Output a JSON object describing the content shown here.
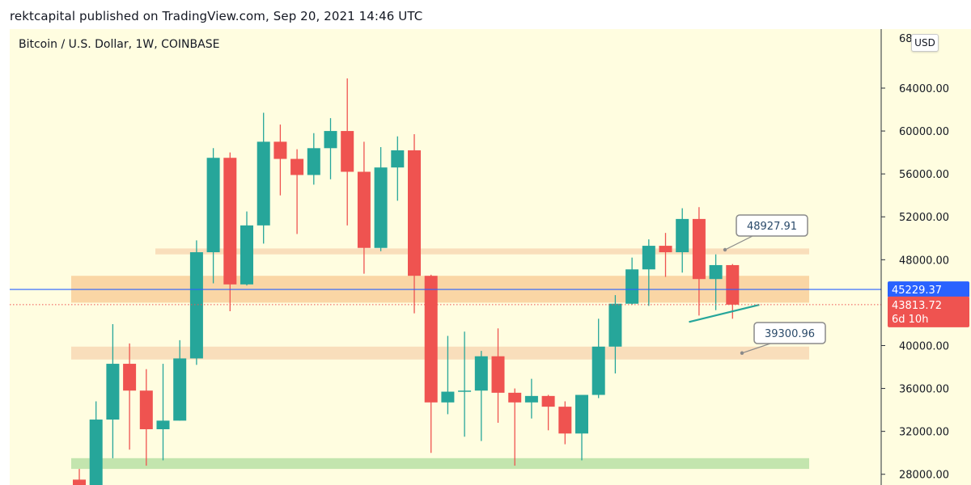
{
  "header": {
    "published_text": "rektcapital published on TradingView.com, Sep 20, 2021 14:46 UTC"
  },
  "chart_data": {
    "type": "candlestick",
    "symbol": "Bitcoin / U.S. Dollar, 1W, COINBASE",
    "currency_button": "USD",
    "y_axis": {
      "ylim": [
        27000,
        69500
      ],
      "ticks": [
        {
          "value": 64000,
          "label": "64000.00"
        },
        {
          "value": 60000,
          "label": "60000.00"
        },
        {
          "value": 56000,
          "label": "56000.00"
        },
        {
          "value": 52000,
          "label": "52000.00"
        },
        {
          "value": 48000,
          "label": "48000.00"
        },
        {
          "value": 44000,
          "label": "44000.00"
        },
        {
          "value": 40000,
          "label": "40000.00"
        },
        {
          "value": 36000,
          "label": "36000.00"
        },
        {
          "value": 32000,
          "label": "32000.00"
        },
        {
          "value": 28000,
          "label": "28000.00"
        }
      ],
      "top_partial_label": "68"
    },
    "colors": {
      "background": "#fffde0",
      "up": "#26a69a",
      "down": "#ef5350",
      "blue_line": "#2962ff",
      "zone_orange": "#f9cf9a",
      "zone_light": "#f8d8b4",
      "zone_green": "#b9e0a5",
      "trendline": "#26a69a"
    },
    "candles": [
      {
        "o": 27500,
        "h": 28500,
        "l": 26000,
        "c": 27000
      },
      {
        "o": 27000,
        "h": 34800,
        "l": 26500,
        "c": 33100
      },
      {
        "o": 33100,
        "h": 42000,
        "l": 29500,
        "c": 38300
      },
      {
        "o": 38300,
        "h": 40200,
        "l": 30300,
        "c": 35800
      },
      {
        "o": 35800,
        "h": 37800,
        "l": 28800,
        "c": 32200
      },
      {
        "o": 32200,
        "h": 38300,
        "l": 29300,
        "c": 33000
      },
      {
        "o": 33000,
        "h": 40500,
        "l": 33000,
        "c": 38800
      },
      {
        "o": 38800,
        "h": 49800,
        "l": 38200,
        "c": 48700
      },
      {
        "o": 48700,
        "h": 58400,
        "l": 45800,
        "c": 57500
      },
      {
        "o": 57500,
        "h": 58000,
        "l": 43200,
        "c": 45700
      },
      {
        "o": 45700,
        "h": 52500,
        "l": 45600,
        "c": 51200
      },
      {
        "o": 51200,
        "h": 61700,
        "l": 49500,
        "c": 59000
      },
      {
        "o": 59000,
        "h": 60600,
        "l": 54000,
        "c": 57400
      },
      {
        "o": 57400,
        "h": 58300,
        "l": 50400,
        "c": 55900
      },
      {
        "o": 55900,
        "h": 59800,
        "l": 55000,
        "c": 58400
      },
      {
        "o": 58400,
        "h": 61200,
        "l": 55500,
        "c": 60000
      },
      {
        "o": 60000,
        "h": 64900,
        "l": 51200,
        "c": 56200
      },
      {
        "o": 56200,
        "h": 59000,
        "l": 46700,
        "c": 49100
      },
      {
        "o": 49100,
        "h": 58500,
        "l": 48800,
        "c": 56600
      },
      {
        "o": 56600,
        "h": 59500,
        "l": 53500,
        "c": 58200
      },
      {
        "o": 58200,
        "h": 59700,
        "l": 43000,
        "c": 46500
      },
      {
        "o": 46500,
        "h": 46600,
        "l": 30000,
        "c": 34700
      },
      {
        "o": 34700,
        "h": 40900,
        "l": 33600,
        "c": 35700
      },
      {
        "o": 35700,
        "h": 41300,
        "l": 31500,
        "c": 35800
      },
      {
        "o": 35800,
        "h": 39500,
        "l": 31100,
        "c": 39000
      },
      {
        "o": 39000,
        "h": 41600,
        "l": 32800,
        "c": 35600
      },
      {
        "o": 35600,
        "h": 36000,
        "l": 28800,
        "c": 34700
      },
      {
        "o": 34700,
        "h": 36900,
        "l": 33200,
        "c": 35300
      },
      {
        "o": 35300,
        "h": 35400,
        "l": 32100,
        "c": 34300
      },
      {
        "o": 34300,
        "h": 34800,
        "l": 30800,
        "c": 31800
      },
      {
        "o": 31800,
        "h": 35300,
        "l": 29300,
        "c": 35400
      },
      {
        "o": 35400,
        "h": 42500,
        "l": 35100,
        "c": 39900
      },
      {
        "o": 39900,
        "h": 44700,
        "l": 37400,
        "c": 43900
      },
      {
        "o": 43900,
        "h": 48200,
        "l": 43800,
        "c": 47100
      },
      {
        "o": 47100,
        "h": 49900,
        "l": 43700,
        "c": 49300
      },
      {
        "o": 49300,
        "h": 50500,
        "l": 46400,
        "c": 48700
      },
      {
        "o": 48700,
        "h": 52800,
        "l": 46800,
        "c": 51800
      },
      {
        "o": 51800,
        "h": 52900,
        "l": 42800,
        "c": 46200
      },
      {
        "o": 46200,
        "h": 48500,
        "l": 43300,
        "c": 47500
      },
      {
        "o": 47500,
        "h": 47600,
        "l": 42500,
        "c": 43814
      }
    ],
    "zones": [
      {
        "from": 48500,
        "to": 49050,
        "color": "zone_light"
      },
      {
        "from": 44000,
        "to": 46500,
        "color": "zone_orange"
      },
      {
        "from": 38700,
        "to": 39900,
        "color": "zone_light"
      },
      {
        "from": 28500,
        "to": 29500,
        "color": "zone_green"
      }
    ],
    "horizontal_line": {
      "value": 45229.37,
      "label": "45229.37"
    },
    "current_price": {
      "value": 43813.72,
      "label": "43813.72",
      "countdown": "6d 10h"
    },
    "callouts": [
      {
        "label": "48927.91",
        "value": 48927.91
      },
      {
        "label": "39300.96",
        "value": 39300.96
      }
    ],
    "trendline": {
      "from_candle": 36.4,
      "from_value": 42200,
      "to_candle": 40.6,
      "to_value": 43800
    }
  }
}
